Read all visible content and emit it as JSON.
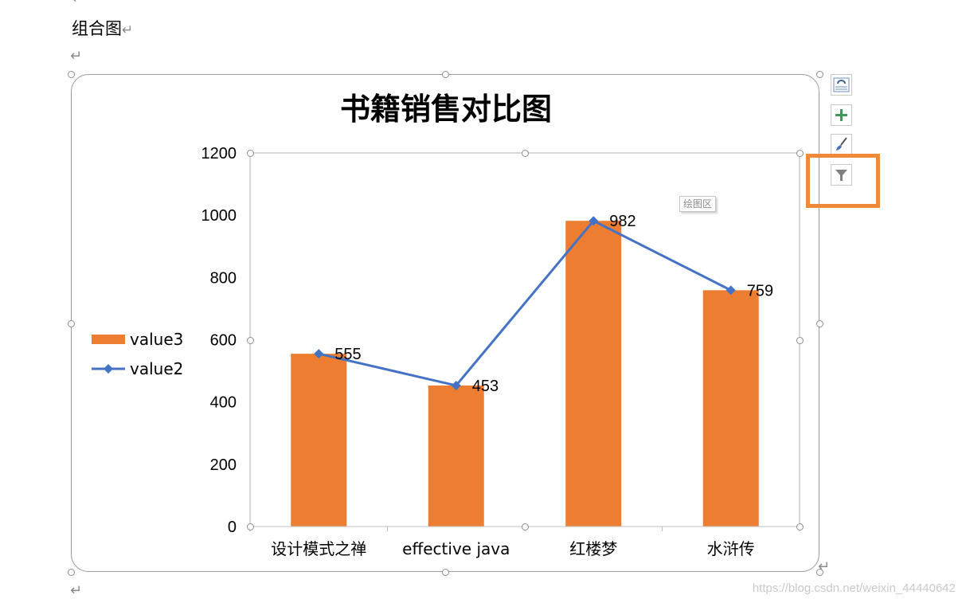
{
  "document": {
    "heading": "组合图",
    "paragraph_mark": "↵"
  },
  "plot_area_tooltip": "绘图区",
  "watermark": "https://blog.csdn.net/weixin_44440642",
  "side_buttons": [
    {
      "icon": "layout-options-icon"
    },
    {
      "icon": "plus-icon"
    },
    {
      "icon": "brush-icon"
    },
    {
      "icon": "filter-icon"
    }
  ],
  "colors": {
    "bar": "#ed7d31",
    "line": "#4472c4",
    "axis": "#bfbfbf",
    "highlight": "#ef8a3a"
  },
  "chart_data": {
    "type": "bar",
    "title": "书籍销售对比图",
    "categories": [
      "设计模式之禅",
      "effective java",
      "红楼梦",
      "水浒传"
    ],
    "series": [
      {
        "name": "value3",
        "type": "bar",
        "values": [
          555,
          453,
          982,
          759
        ]
      },
      {
        "name": "value2",
        "type": "line",
        "marker": "diamond",
        "values": [
          555,
          453,
          982,
          759
        ]
      }
    ],
    "data_labels": [
      "555",
      "453",
      "982",
      "759"
    ],
    "yticks": [
      "0",
      "200",
      "400",
      "600",
      "800",
      "1000",
      "1200"
    ],
    "ylim": [
      0,
      1200
    ],
    "grid": false,
    "legend": {
      "position": "left",
      "entries": [
        "value3",
        "value2"
      ]
    }
  }
}
